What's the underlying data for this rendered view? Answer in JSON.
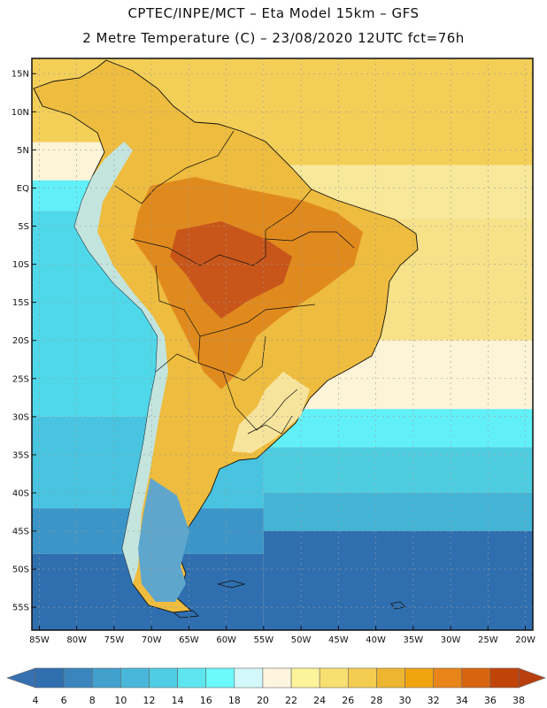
{
  "header": {
    "title_line1": "CPTEC/INPE/MCT –  Eta Model 15km – GFS",
    "title_line2": "2 Metre Temperature (C) – 23/08/2020 12UTC fct=76h"
  },
  "map": {
    "lon_range": [
      -86,
      -19
    ],
    "lat_range": [
      -58,
      17
    ],
    "lat_ticks": [
      {
        "value": 15,
        "label": "15N"
      },
      {
        "value": 10,
        "label": "10N"
      },
      {
        "value": 5,
        "label": "5N"
      },
      {
        "value": 0,
        "label": "EQ"
      },
      {
        "value": -5,
        "label": "5S"
      },
      {
        "value": -10,
        "label": "10S"
      },
      {
        "value": -15,
        "label": "15S"
      },
      {
        "value": -20,
        "label": "20S"
      },
      {
        "value": -25,
        "label": "25S"
      },
      {
        "value": -30,
        "label": "30S"
      },
      {
        "value": -35,
        "label": "35S"
      },
      {
        "value": -40,
        "label": "40S"
      },
      {
        "value": -45,
        "label": "45S"
      },
      {
        "value": -50,
        "label": "50S"
      },
      {
        "value": -55,
        "label": "55S"
      }
    ],
    "lon_ticks": [
      {
        "value": -85,
        "label": "85W"
      },
      {
        "value": -80,
        "label": "80W"
      },
      {
        "value": -75,
        "label": "75W"
      },
      {
        "value": -70,
        "label": "70W"
      },
      {
        "value": -65,
        "label": "65W"
      },
      {
        "value": -60,
        "label": "60W"
      },
      {
        "value": -55,
        "label": "55W"
      },
      {
        "value": -50,
        "label": "50W"
      },
      {
        "value": -45,
        "label": "45W"
      },
      {
        "value": -40,
        "label": "40W"
      },
      {
        "value": -35,
        "label": "35W"
      },
      {
        "value": -30,
        "label": "30W"
      },
      {
        "value": -25,
        "label": "25W"
      },
      {
        "value": -20,
        "label": "20W"
      }
    ],
    "gridlines": true,
    "ocean_bands": [
      {
        "lat_top": 17,
        "lat_bottom": 3,
        "color": "#f4cf58"
      },
      {
        "lat_top": 3,
        "lat_bottom": -4,
        "color": "#f8e89a"
      },
      {
        "lat_top": -4,
        "lat_bottom": -20,
        "color": "#f7e28a"
      },
      {
        "lat_top": -20,
        "lat_bottom": -29,
        "color": "#fdf3d6"
      },
      {
        "lat_top": -29,
        "lat_bottom": -34,
        "color": "#62f0f8"
      },
      {
        "lat_top": -34,
        "lat_bottom": -40,
        "color": "#4fcde0"
      },
      {
        "lat_top": -40,
        "lat_bottom": -45,
        "color": "#44b4d6"
      },
      {
        "lat_top": -45,
        "lat_bottom": -58,
        "color": "#2f6fb0"
      }
    ],
    "pacific_bands": [
      {
        "lat_top": 17,
        "lat_bottom": 6,
        "color": "#f4cf58"
      },
      {
        "lat_top": 6,
        "lat_bottom": 1,
        "color": "#fdf3d6"
      },
      {
        "lat_top": 1,
        "lat_bottom": -3,
        "color": "#62f0f8"
      },
      {
        "lat_top": -3,
        "lat_bottom": -30,
        "color": "#4fd8ea"
      },
      {
        "lat_top": -30,
        "lat_bottom": -42,
        "color": "#48c4e0"
      },
      {
        "lat_top": -42,
        "lat_bottom": -48,
        "color": "#3b95c8"
      },
      {
        "lat_top": -48,
        "lat_bottom": -58,
        "color": "#2f6fb0"
      }
    ]
  },
  "colorbar": {
    "labels": [
      "4",
      "6",
      "8",
      "10",
      "12",
      "14",
      "16",
      "18",
      "20",
      "22",
      "24",
      "26",
      "28",
      "30",
      "32",
      "34",
      "36",
      "38"
    ],
    "low_color": "#3570b0",
    "high_color": "#b8400f",
    "colors": [
      "#2f6fb0",
      "#3b85be",
      "#41a0cc",
      "#48b7da",
      "#4fcde4",
      "#5ee6f0",
      "#6cf9f9",
      "#d3f8fb",
      "#fdf5dd",
      "#fcf39a",
      "#f8e070",
      "#f4cc50",
      "#eeb630",
      "#f0a410",
      "#e88418",
      "#d86410",
      "#c04408"
    ]
  }
}
